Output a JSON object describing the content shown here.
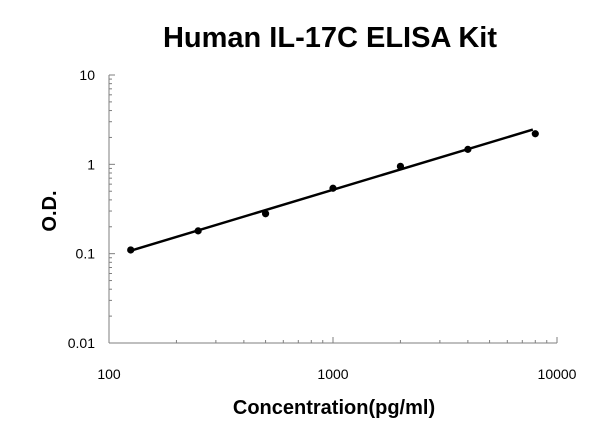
{
  "chart_data": {
    "type": "scatter",
    "title": "Human IL-17C ELISA Kit",
    "xlabel": "Concentration(pg/ml)",
    "ylabel": "O.D.",
    "x_scale": "log",
    "y_scale": "log",
    "xlim": [
      100,
      10000
    ],
    "ylim": [
      0.01,
      10
    ],
    "x_ticks": [
      "100",
      "1000",
      "10000"
    ],
    "y_ticks": [
      "10",
      "1",
      "0.1",
      "0.01"
    ],
    "grid": false,
    "legend": "none",
    "series": [
      {
        "points": [
          {
            "x": 125,
            "y": 0.11
          },
          {
            "x": 250,
            "y": 0.18
          },
          {
            "x": 500,
            "y": 0.28
          },
          {
            "x": 1000,
            "y": 0.54
          },
          {
            "x": 2000,
            "y": 0.95
          },
          {
            "x": 4000,
            "y": 1.47
          },
          {
            "x": 8000,
            "y": 2.2
          }
        ],
        "fit_line": [
          {
            "x": 125,
            "y": 0.108
          },
          {
            "x": 7800,
            "y": 2.45
          }
        ]
      }
    ],
    "colors": {
      "points": "#000000",
      "line": "#000000",
      "axis": "#7f7f7f"
    }
  }
}
